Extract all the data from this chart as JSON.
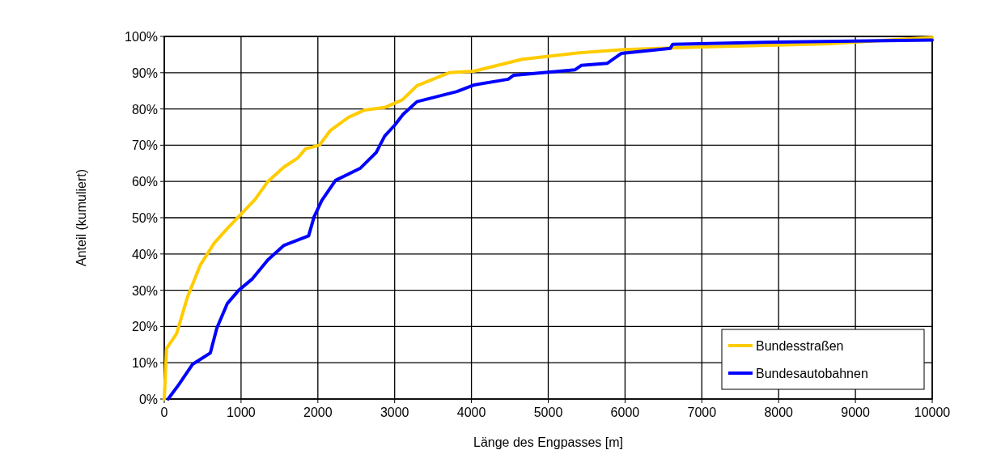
{
  "chart_data": {
    "type": "line",
    "xlabel": "Länge des Engpasses [m]",
    "ylabel": "Anteil (kumuliert)",
    "xlim": [
      0,
      10000
    ],
    "xticks": [
      0,
      1000,
      2000,
      3000,
      4000,
      5000,
      6000,
      7000,
      8000,
      9000,
      10000
    ],
    "ylim": [
      0,
      100
    ],
    "yticks": [
      {
        "value": 0,
        "label": "0%"
      },
      {
        "value": 10,
        "label": "10%"
      },
      {
        "value": 20,
        "label": "20%"
      },
      {
        "value": 30,
        "label": "30%"
      },
      {
        "value": 40,
        "label": "40%"
      },
      {
        "value": 50,
        "label": "50%"
      },
      {
        "value": 60,
        "label": "60%"
      },
      {
        "value": 70,
        "label": "70%"
      },
      {
        "value": 80,
        "label": "80%"
      },
      {
        "value": 90,
        "label": "90%"
      },
      {
        "value": 100,
        "label": "100%"
      }
    ],
    "grid": true,
    "legend": "bottom right",
    "marker": "none",
    "line_style": "solid",
    "series": [
      {
        "name": "Bundesstraßen",
        "color": "#ffcc00",
        "x": [
          0,
          30,
          160,
          300,
          470,
          650,
          820,
          1000,
          1180,
          1350,
          1560,
          1740,
          1840,
          2020,
          2160,
          2400,
          2610,
          2870,
          3100,
          3290,
          3710,
          4030,
          4660,
          5400,
          5990,
          7010,
          8660,
          10000
        ],
        "values": [
          0,
          14,
          18,
          28,
          37,
          43,
          47,
          51,
          55,
          60,
          64,
          66.5,
          69,
          70,
          74,
          77.7,
          79.7,
          80.4,
          82.5,
          86.4,
          90,
          90.4,
          93.7,
          95.5,
          96.4,
          97.1,
          98,
          99.7
        ]
      },
      {
        "name": "Bundesautobahnen",
        "color": "#0000ff",
        "x": [
          50,
          190,
          370,
          600,
          685,
          820,
          970,
          1140,
          1350,
          1560,
          1880,
          1950,
          2050,
          2230,
          2550,
          2760,
          2870,
          3000,
          3110,
          3290,
          3810,
          4030,
          4480,
          4550,
          5350,
          5430,
          5770,
          5950,
          6590,
          6620,
          7820,
          10000
        ],
        "values": [
          0,
          4,
          9.6,
          12.7,
          19.6,
          26.3,
          30,
          33,
          38.4,
          42.4,
          45,
          50.2,
          54.7,
          60.3,
          63.6,
          68,
          72.5,
          75.5,
          78.5,
          82,
          84.8,
          86.6,
          88.2,
          89.3,
          90.8,
          92,
          92.6,
          95.3,
          96.7,
          97.8,
          98.4,
          99
        ]
      }
    ]
  }
}
